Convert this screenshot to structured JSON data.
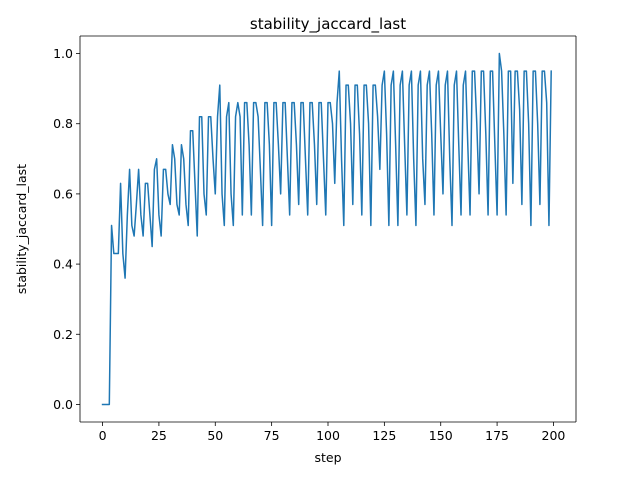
{
  "chart_data": {
    "type": "line",
    "title": "stability_jaccard_last",
    "xlabel": "step",
    "ylabel": "stability_jaccard_last",
    "xlim": [
      -10,
      210
    ],
    "ylim": [
      -0.05,
      1.05
    ],
    "xticks": [
      0,
      25,
      50,
      75,
      100,
      125,
      150,
      175,
      200
    ],
    "xtick_labels": [
      "0",
      "25",
      "50",
      "75",
      "100",
      "125",
      "150",
      "175",
      "200"
    ],
    "yticks": [
      0.0,
      0.2,
      0.4,
      0.6,
      0.8,
      1.0
    ],
    "ytick_labels": [
      "0.0",
      "0.2",
      "0.4",
      "0.6",
      "0.8",
      "1.0"
    ],
    "grid": false,
    "legend": "none",
    "series": [
      {
        "color": "#1f77b4",
        "x": [
          0,
          1,
          2,
          3,
          4,
          5,
          6,
          7,
          8,
          9,
          10,
          11,
          12,
          13,
          14,
          15,
          16,
          17,
          18,
          19,
          20,
          21,
          22,
          23,
          24,
          25,
          26,
          27,
          28,
          29,
          30,
          31,
          32,
          33,
          34,
          35,
          36,
          37,
          38,
          39,
          40,
          41,
          42,
          43,
          44,
          45,
          46,
          47,
          48,
          49,
          50,
          51,
          52,
          53,
          54,
          55,
          56,
          57,
          58,
          59,
          60,
          61,
          62,
          63,
          64,
          65,
          66,
          67,
          68,
          69,
          70,
          71,
          72,
          73,
          74,
          75,
          76,
          77,
          78,
          79,
          80,
          81,
          82,
          83,
          84,
          85,
          86,
          87,
          88,
          89,
          90,
          91,
          92,
          93,
          94,
          95,
          96,
          97,
          98,
          99,
          100,
          101,
          102,
          103,
          104,
          105,
          106,
          107,
          108,
          109,
          110,
          111,
          112,
          113,
          114,
          115,
          116,
          117,
          118,
          119,
          120,
          121,
          122,
          123,
          124,
          125,
          126,
          127,
          128,
          129,
          130,
          131,
          132,
          133,
          134,
          135,
          136,
          137,
          138,
          139,
          140,
          141,
          142,
          143,
          144,
          145,
          146,
          147,
          148,
          149,
          150,
          151,
          152,
          153,
          154,
          155,
          156,
          157,
          158,
          159,
          160,
          161,
          162,
          163,
          164,
          165,
          166,
          167,
          168,
          169,
          170,
          171,
          172,
          173,
          174,
          175,
          176,
          177,
          178,
          179,
          180,
          181,
          182,
          183,
          184,
          185,
          186,
          187,
          188,
          189,
          190,
          191,
          192,
          193,
          194,
          195,
          196,
          197,
          198,
          199
        ],
        "y": [
          0,
          0,
          0,
          0,
          0.51,
          0.43,
          0.43,
          0.43,
          0.63,
          0.43,
          0.36,
          0.54,
          0.67,
          0.51,
          0.48,
          0.57,
          0.67,
          0.54,
          0.48,
          0.63,
          0.63,
          0.54,
          0.45,
          0.67,
          0.7,
          0.54,
          0.48,
          0.67,
          0.67,
          0.6,
          0.57,
          0.74,
          0.7,
          0.57,
          0.54,
          0.74,
          0.7,
          0.57,
          0.51,
          0.78,
          0.78,
          0.63,
          0.48,
          0.82,
          0.82,
          0.6,
          0.54,
          0.82,
          0.82,
          0.7,
          0.6,
          0.82,
          0.91,
          0.6,
          0.51,
          0.82,
          0.86,
          0.6,
          0.51,
          0.82,
          0.86,
          0.82,
          0.54,
          0.86,
          0.86,
          0.74,
          0.54,
          0.86,
          0.86,
          0.82,
          0.67,
          0.51,
          0.86,
          0.86,
          0.74,
          0.51,
          0.86,
          0.86,
          0.74,
          0.6,
          0.86,
          0.86,
          0.7,
          0.54,
          0.86,
          0.86,
          0.74,
          0.57,
          0.86,
          0.86,
          0.7,
          0.54,
          0.86,
          0.86,
          0.74,
          0.57,
          0.86,
          0.86,
          0.7,
          0.54,
          0.86,
          0.86,
          0.8,
          0.63,
          0.86,
          0.95,
          0.7,
          0.51,
          0.91,
          0.91,
          0.8,
          0.57,
          0.91,
          0.91,
          0.77,
          0.54,
          0.91,
          0.91,
          0.8,
          0.51,
          0.91,
          0.91,
          0.82,
          0.67,
          0.91,
          0.95,
          0.77,
          0.51,
          0.91,
          0.95,
          0.74,
          0.51,
          0.91,
          0.95,
          0.74,
          0.54,
          0.91,
          0.95,
          0.7,
          0.51,
          0.91,
          0.95,
          0.7,
          0.57,
          0.91,
          0.95,
          0.77,
          0.54,
          0.91,
          0.95,
          0.77,
          0.6,
          0.91,
          0.95,
          0.7,
          0.51,
          0.91,
          0.95,
          0.74,
          0.54,
          0.91,
          0.95,
          0.74,
          0.54,
          0.95,
          0.95,
          0.8,
          0.6,
          0.95,
          0.95,
          0.77,
          0.54,
          0.95,
          0.95,
          0.74,
          0.54,
          1.0,
          0.95,
          0.77,
          0.54,
          0.95,
          0.95,
          0.63,
          0.95,
          0.95,
          0.84,
          0.57,
          0.95,
          0.95,
          0.8,
          0.51,
          0.95,
          0.95,
          0.8,
          0.57,
          0.95,
          0.95,
          0.86,
          0.51,
          0.95
        ]
      }
    ]
  }
}
